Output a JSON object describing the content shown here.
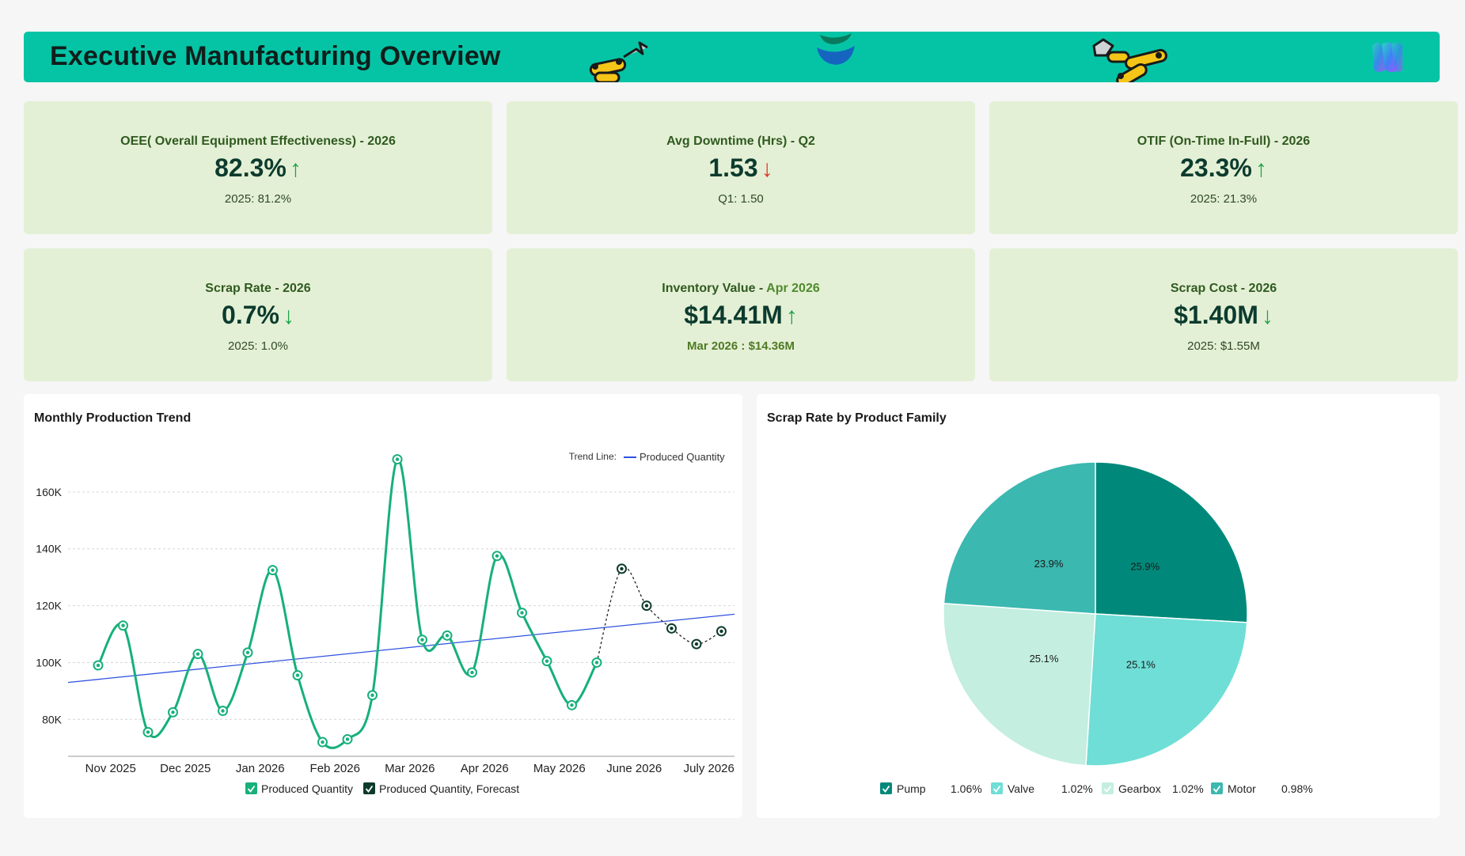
{
  "header": {
    "title": "Executive Manufacturing Overview"
  },
  "kpis": [
    {
      "title": "OEE( Overall Equipment Effectiveness) - 2026",
      "title_highlight": "",
      "value": "82.3%",
      "arrow": "↑",
      "arrow_type": "up-green",
      "sub": "2025: 81.2%"
    },
    {
      "title": "Avg Downtime (Hrs) - Q2",
      "title_highlight": "",
      "value": "1.53",
      "arrow": "↓",
      "arrow_type": "down-red",
      "sub": "Q1: 1.50"
    },
    {
      "title": "OTIF (On-Time In-Full) - 2026",
      "title_highlight": "",
      "value": "23.3%",
      "arrow": "↑",
      "arrow_type": "up-green",
      "sub": "2025: 21.3%"
    },
    {
      "title": "Scrap Rate - 2026",
      "title_highlight": "",
      "value": "0.7%",
      "arrow": "↓",
      "arrow_type": "down-green",
      "sub": "2025: 1.0%"
    },
    {
      "title": "Inventory Value - ",
      "title_highlight": "Apr 2026",
      "value": "$14.41M",
      "arrow": "↑",
      "arrow_type": "up-green",
      "sub": "Mar 2026 : $14.36M"
    },
    {
      "title": "Scrap Cost - 2026",
      "title_highlight": "",
      "value": "$1.40M",
      "arrow": "↓",
      "arrow_type": "down-green",
      "sub": "2025: $1.55M"
    }
  ],
  "colors": {
    "header": "#05c4a6",
    "kpi_bg": "#e4f0d5",
    "line_series": "#16b07a",
    "forecast_series": "#0d3b2b",
    "trend_line": "#2f52e0",
    "pie": [
      "#00897b",
      "#6fded6",
      "#c3eee0",
      "#3bb8b0"
    ]
  },
  "chart_data": [
    {
      "type": "line",
      "title": "Monthly Production Trend",
      "trend_label": "Trend Line:",
      "trend_series_name": "Produced Quantity",
      "x_tick_labels": [
        "Nov 2025",
        "Dec 2025",
        "Jan 2026",
        "Feb 2026",
        "Mar 2026",
        "Apr 2026",
        "May 2026",
        "June 2026",
        "July 2026"
      ],
      "y_ticks": [
        "160K",
        "140K",
        "120K",
        "100K",
        "80K"
      ],
      "y_tick_values": [
        160000,
        140000,
        120000,
        100000,
        80000
      ],
      "ylim": [
        67000,
        175000
      ],
      "grid": true,
      "series": [
        {
          "name": "Produced Quantity",
          "values": [
            99000,
            113000,
            75500,
            82500,
            103000,
            83000,
            103500,
            132500,
            95500,
            72000,
            73000,
            88500,
            171500,
            108000,
            109500,
            96500,
            137500,
            117500,
            100500,
            85000,
            100000
          ]
        },
        {
          "name": "Produced Quantity, Forecast",
          "values": [
            null,
            null,
            null,
            null,
            null,
            null,
            null,
            null,
            null,
            null,
            null,
            null,
            null,
            null,
            null,
            null,
            null,
            null,
            null,
            null,
            100000,
            133000,
            120000,
            112000,
            106500,
            111000
          ]
        }
      ],
      "trend": {
        "start": 93000,
        "end": 117000
      },
      "legend": [
        "Produced Quantity",
        "Produced Quantity, Forecast"
      ],
      "legend_position": "bottom"
    },
    {
      "type": "pie",
      "title": "Scrap Rate by Product Family",
      "slices": [
        {
          "name": "Pump",
          "percent": 25.9,
          "label": "25.9%",
          "legend_value": "1.06%"
        },
        {
          "name": "Valve",
          "percent": 25.1,
          "label": "25.1%",
          "legend_value": "1.02%"
        },
        {
          "name": "Gearbox",
          "percent": 25.1,
          "label": "25.1%",
          "legend_value": "1.02%"
        },
        {
          "name": "Motor",
          "percent": 23.9,
          "label": "23.9%",
          "legend_value": "0.98%"
        }
      ],
      "legend_position": "bottom"
    }
  ]
}
